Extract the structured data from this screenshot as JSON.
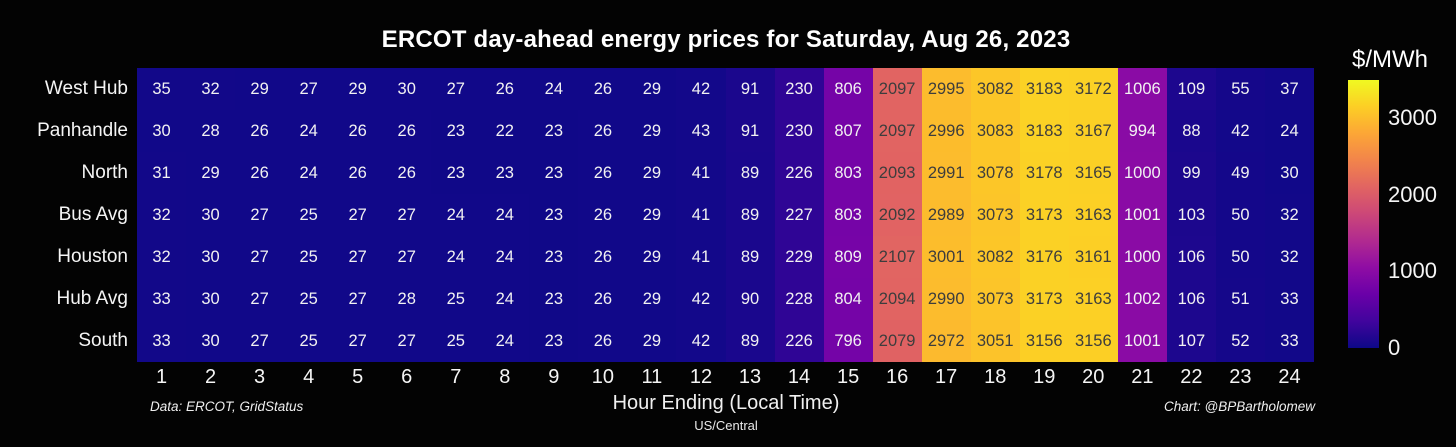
{
  "title": "ERCOT day-ahead energy prices for Saturday, Aug 26, 2023",
  "chart_data": {
    "type": "heatmap",
    "title": "ERCOT day-ahead energy prices for Saturday, Aug 26, 2023",
    "rows": [
      "West Hub",
      "Panhandle",
      "North",
      "Bus Avg",
      "Houston",
      "Hub Avg",
      "South"
    ],
    "columns": [
      "1",
      "2",
      "3",
      "4",
      "5",
      "6",
      "7",
      "8",
      "9",
      "10",
      "11",
      "12",
      "13",
      "14",
      "15",
      "16",
      "17",
      "18",
      "19",
      "20",
      "21",
      "22",
      "23",
      "24"
    ],
    "xlabel": "Hour Ending (Local Time)",
    "xlabel_sub": "US/Central",
    "ylabel": "",
    "values": [
      [
        35,
        32,
        29,
        27,
        29,
        30,
        27,
        26,
        24,
        26,
        29,
        42,
        91,
        230,
        806,
        2097,
        2995,
        3082,
        3183,
        3172,
        1006,
        109,
        55,
        37
      ],
      [
        30,
        28,
        26,
        24,
        26,
        26,
        23,
        22,
        23,
        26,
        29,
        43,
        91,
        230,
        807,
        2097,
        2996,
        3083,
        3183,
        3167,
        994,
        88,
        42,
        24
      ],
      [
        31,
        29,
        26,
        24,
        26,
        26,
        23,
        23,
        23,
        26,
        29,
        41,
        89,
        226,
        803,
        2093,
        2991,
        3078,
        3178,
        3165,
        1000,
        99,
        49,
        30
      ],
      [
        32,
        30,
        27,
        25,
        27,
        27,
        24,
        24,
        23,
        26,
        29,
        41,
        89,
        227,
        803,
        2092,
        2989,
        3073,
        3173,
        3163,
        1001,
        103,
        50,
        32
      ],
      [
        32,
        30,
        27,
        25,
        27,
        27,
        24,
        24,
        23,
        26,
        29,
        41,
        89,
        229,
        809,
        2107,
        3001,
        3082,
        3176,
        3161,
        1000,
        106,
        50,
        32
      ],
      [
        33,
        30,
        27,
        25,
        27,
        28,
        25,
        24,
        23,
        26,
        29,
        42,
        90,
        228,
        804,
        2094,
        2990,
        3073,
        3173,
        3163,
        1002,
        106,
        51,
        33
      ],
      [
        33,
        30,
        27,
        25,
        27,
        27,
        25,
        24,
        23,
        26,
        29,
        42,
        89,
        226,
        796,
        2079,
        2972,
        3051,
        3156,
        3156,
        1001,
        107,
        52,
        33
      ]
    ],
    "colorbar": {
      "label": "$/MWh",
      "ticks": [
        0,
        1000,
        2000,
        3000
      ],
      "vmin": 0,
      "vmax": 3500,
      "colormap": "plasma",
      "colormap_anchors": [
        "#0d0887",
        "#41049d",
        "#6a00a8",
        "#8f0da4",
        "#b12a90",
        "#cc4778",
        "#e16462",
        "#f2844b",
        "#fca636",
        "#fcce25",
        "#f0f921"
      ]
    },
    "legend_position": "right",
    "grid": false
  },
  "footnotes": {
    "left": "Data: ERCOT, GridStatus",
    "right": "Chart: @BPBartholomew"
  },
  "colors": {
    "background": "#030303",
    "text": "#ffffff",
    "cell_text_light": "#f2f2f2",
    "cell_text_dark": "#3d3d3d"
  }
}
